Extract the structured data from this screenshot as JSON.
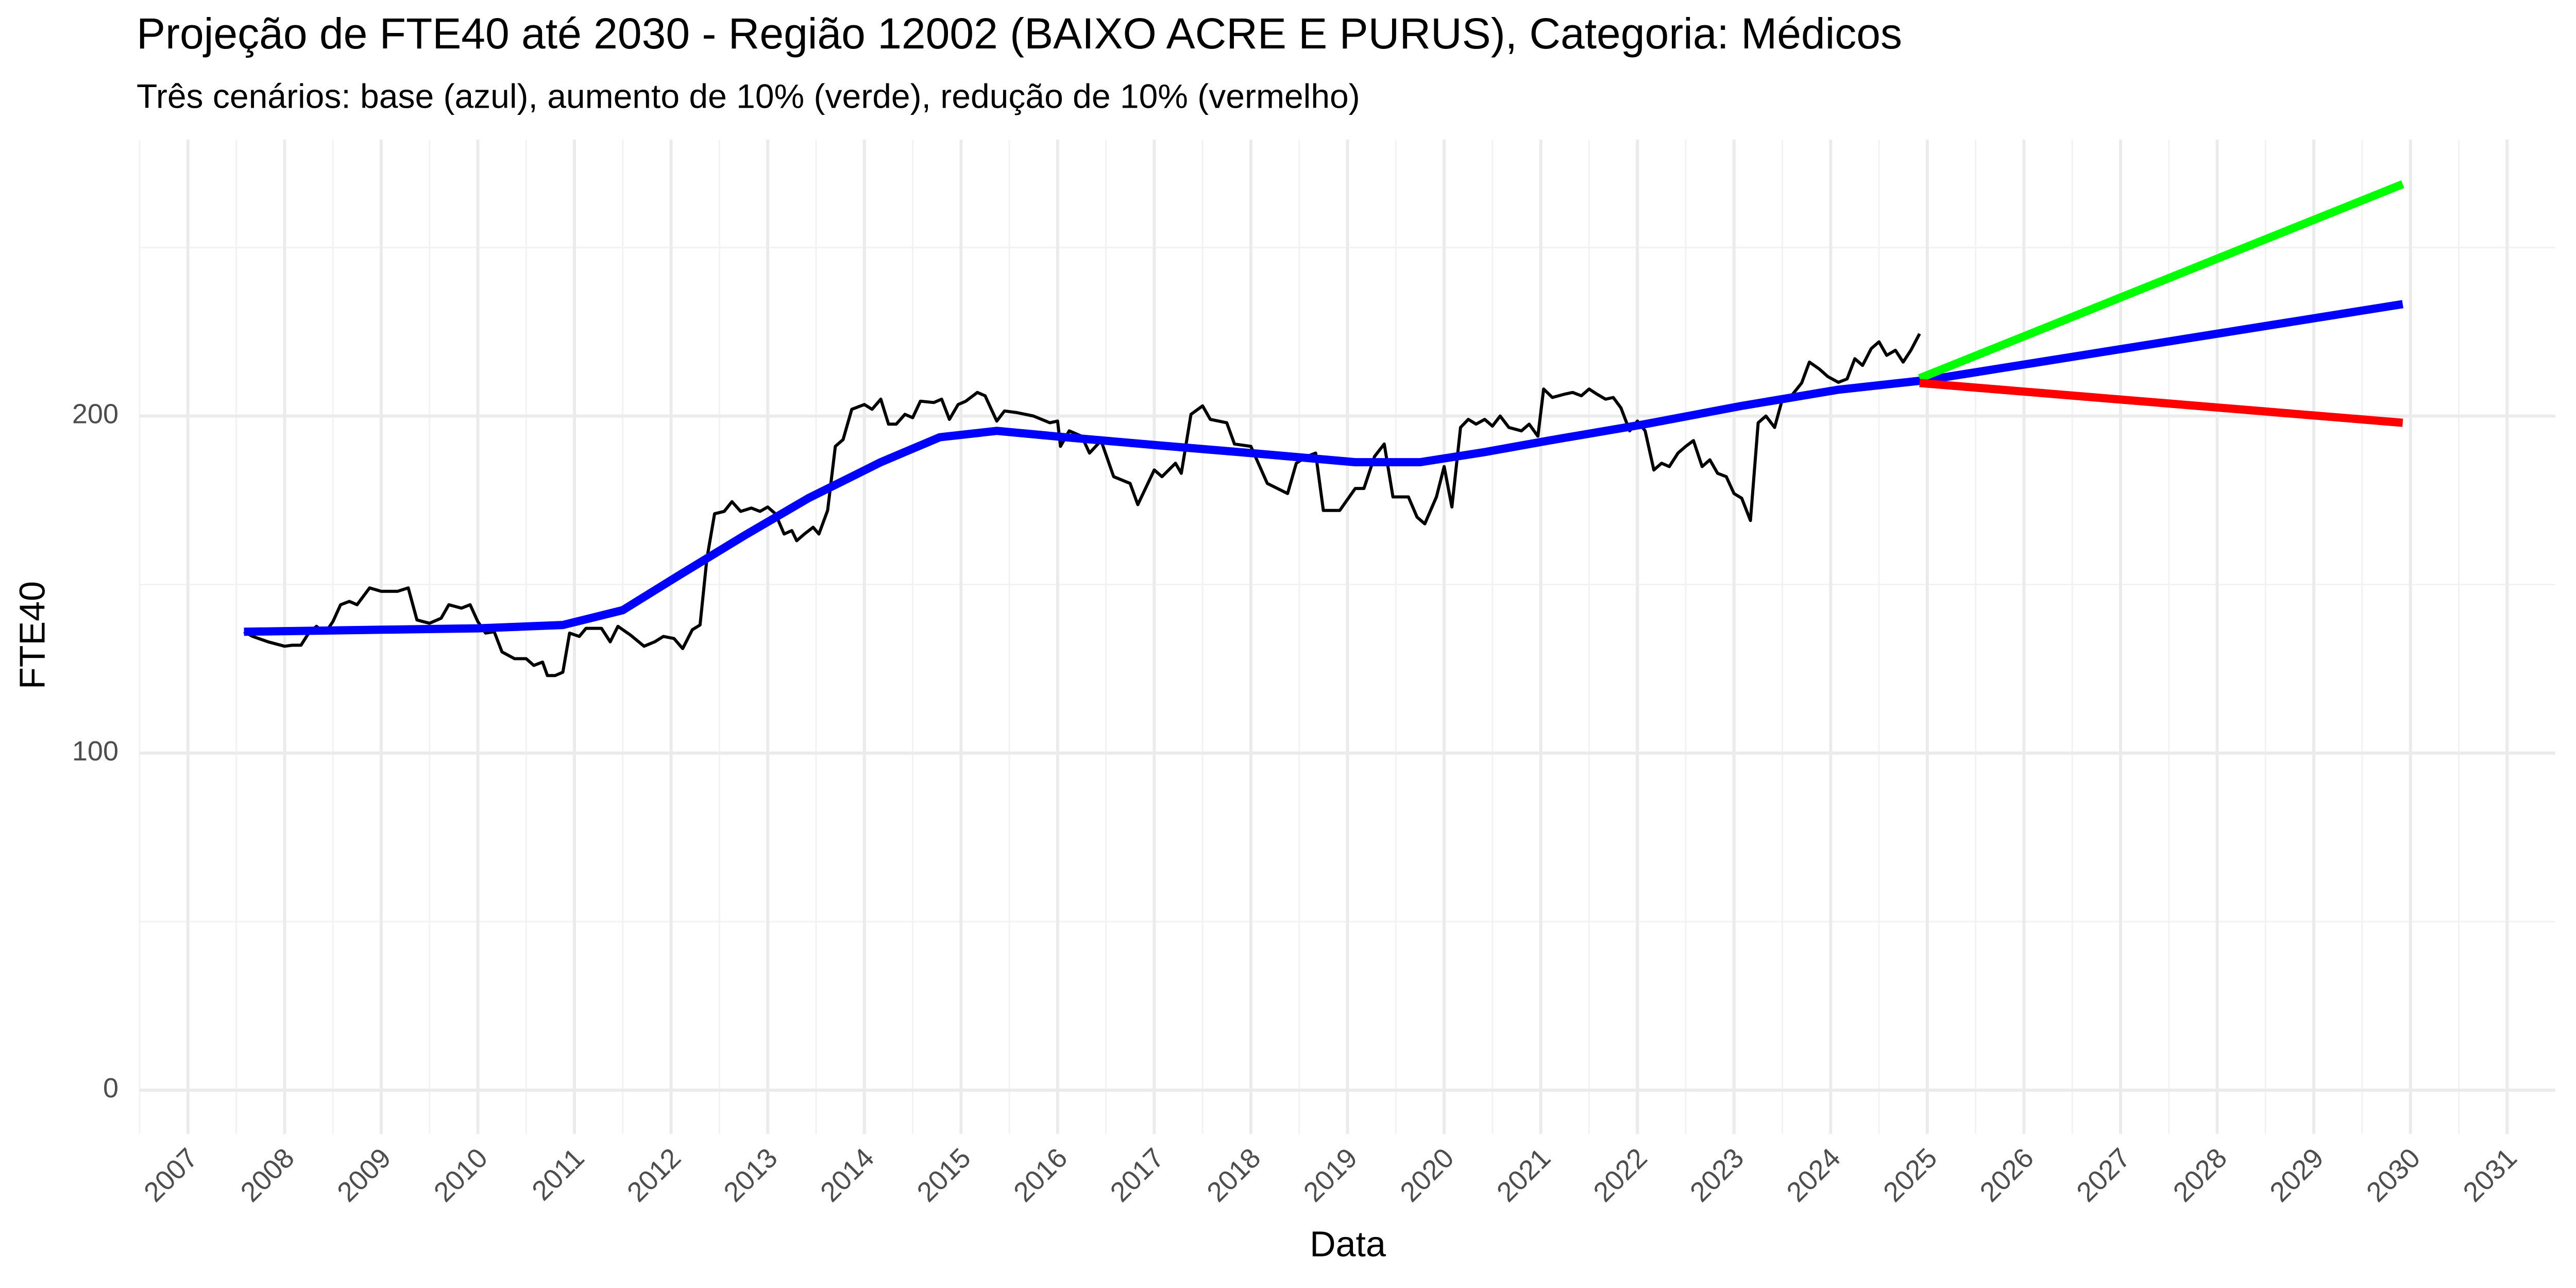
{
  "chart_data": {
    "type": "line",
    "title": "Projeção de FTE40 até 2030 - Região 12002 (BAIXO ACRE E PURUS), Categoria: Médicos",
    "subtitle": "Três cenários: base (azul), aumento de 10% (verde), redução de 10% (vermelho)",
    "x_label": "Data",
    "y_label": "FTE40",
    "xlim": [
      2006.5,
      2031.5
    ],
    "ylim": [
      -13,
      282
    ],
    "xticks": [
      2007,
      2008,
      2009,
      2010,
      2011,
      2012,
      2013,
      2014,
      2015,
      2016,
      2017,
      2018,
      2019,
      2020,
      2021,
      2022,
      2023,
      2024,
      2025,
      2026,
      2027,
      2028,
      2029,
      2030,
      2031
    ],
    "x_minor_ticks": [
      2006.5,
      2007.5,
      2008.5,
      2009.5,
      2010.5,
      2011.5,
      2012.5,
      2013.5,
      2014.5,
      2015.5,
      2016.5,
      2017.5,
      2018.5,
      2019.5,
      2020.5,
      2021.5,
      2022.5,
      2023.5,
      2024.5,
      2025.5,
      2026.5,
      2027.5,
      2028.5,
      2029.5,
      2030.5
    ],
    "yticks": [
      0,
      100,
      200
    ],
    "y_minor_ticks": [
      50,
      150,
      250
    ],
    "grid": true,
    "series": [
      {
        "color": "#000000",
        "width": 6,
        "x": [
          2007.58,
          2007.67,
          2007.83,
          2008.0,
          2008.08,
          2008.17,
          2008.25,
          2008.33,
          2008.42,
          2008.5,
          2008.58,
          2008.67,
          2008.75,
          2008.88,
          2009.0,
          2009.17,
          2009.28,
          2009.37,
          2009.5,
          2009.62,
          2009.7,
          2009.83,
          2009.92,
          2010.0,
          2010.08,
          2010.17,
          2010.25,
          2010.38,
          2010.5,
          2010.58,
          2010.67,
          2010.72,
          2010.8,
          2010.88,
          2010.95,
          2011.05,
          2011.12,
          2011.28,
          2011.37,
          2011.45,
          2011.58,
          2011.72,
          2011.83,
          2011.92,
          2012.03,
          2012.12,
          2012.22,
          2012.3,
          2012.37,
          2012.45,
          2012.55,
          2012.63,
          2012.72,
          2012.83,
          2012.92,
          2013.0,
          2013.08,
          2013.17,
          2013.25,
          2013.3,
          2013.38,
          2013.47,
          2013.53,
          2013.62,
          2013.7,
          2013.78,
          2013.87,
          2014.0,
          2014.08,
          2014.17,
          2014.25,
          2014.33,
          2014.42,
          2014.5,
          2014.58,
          2014.72,
          2014.8,
          2014.88,
          2014.97,
          2015.05,
          2015.17,
          2015.25,
          2015.37,
          2015.45,
          2015.58,
          2015.75,
          2015.92,
          2016.0,
          2016.03,
          2016.12,
          2016.25,
          2016.33,
          2016.45,
          2016.58,
          2016.75,
          2016.83,
          2017.0,
          2017.08,
          2017.22,
          2017.28,
          2017.38,
          2017.5,
          2017.58,
          2017.75,
          2017.83,
          2018.0,
          2018.17,
          2018.38,
          2018.47,
          2018.58,
          2018.67,
          2018.75,
          2018.92,
          2019.08,
          2019.17,
          2019.28,
          2019.38,
          2019.47,
          2019.63,
          2019.72,
          2019.8,
          2019.92,
          2020.0,
          2020.08,
          2020.17,
          2020.25,
          2020.33,
          2020.42,
          2020.5,
          2020.58,
          2020.67,
          2020.8,
          2020.88,
          2020.97,
          2021.03,
          2021.12,
          2021.25,
          2021.33,
          2021.42,
          2021.5,
          2021.58,
          2021.67,
          2021.75,
          2021.83,
          2021.92,
          2022.0,
          2022.08,
          2022.17,
          2022.25,
          2022.33,
          2022.42,
          2022.5,
          2022.58,
          2022.67,
          2022.75,
          2022.83,
          2022.92,
          2023.0,
          2023.08,
          2023.17,
          2023.25,
          2023.33,
          2023.42,
          2023.5,
          2023.58,
          2023.7,
          2023.78,
          2023.88,
          2023.97,
          2024.08,
          2024.17,
          2024.25,
          2024.33,
          2024.42,
          2024.5,
          2024.58,
          2024.67,
          2024.75,
          2024.83,
          2024.92
        ],
        "values": [
          136,
          134.6,
          133,
          131.7,
          132,
          132,
          135.6,
          137.6,
          135.6,
          139,
          144,
          145,
          144,
          149,
          148,
          148,
          149,
          139.5,
          138.5,
          140,
          144,
          143,
          144,
          139,
          135.6,
          136,
          130,
          128,
          128,
          126,
          127,
          123,
          123,
          124,
          135.6,
          134.6,
          137,
          137,
          133,
          137.6,
          135,
          131.7,
          133,
          134.6,
          134,
          131,
          136.6,
          138,
          157.6,
          171,
          171.7,
          174.6,
          171.7,
          172.7,
          171.7,
          173,
          171,
          165,
          166,
          163,
          165,
          167,
          165,
          172,
          191,
          193,
          202,
          203.4,
          202,
          205,
          197.6,
          197.6,
          200.5,
          199.5,
          204.4,
          204,
          205,
          199,
          203.4,
          204.4,
          207,
          206,
          198.5,
          201.5,
          201,
          200,
          198,
          198.5,
          191,
          195.6,
          194,
          189,
          192.7,
          182,
          180,
          173.7,
          184,
          182,
          186,
          183,
          200.5,
          203,
          199,
          198,
          191.7,
          191,
          180,
          177,
          186,
          188,
          189,
          172,
          172,
          178.5,
          178.5,
          188,
          191.7,
          176,
          176,
          170,
          168,
          176,
          185,
          173,
          196.6,
          199,
          197.6,
          199,
          197,
          200,
          196.6,
          195.6,
          197.6,
          194,
          208,
          205.5,
          206.5,
          207,
          206,
          208,
          206.5,
          205,
          205.5,
          202.4,
          195.6,
          198.5,
          195.6,
          184,
          186,
          185,
          189,
          191,
          192.7,
          185,
          187,
          183,
          182,
          177,
          175.6,
          169,
          198,
          200,
          196.6,
          205,
          205.5,
          209.8,
          216,
          214,
          211.7,
          210,
          211,
          217,
          215,
          220,
          222,
          218,
          219.5,
          216,
          219.5,
          224.4
        ]
      },
      {
        "color": "#0000ff",
        "width": 16,
        "x": [
          2007.58,
          2009.0,
          2010.0,
          2010.88,
          2011.5,
          2012.08,
          2012.75,
          2013.42,
          2014.17,
          2014.78,
          2015.37,
          2016.08,
          2017.08,
          2018.08,
          2019.08,
          2019.75,
          2020.42,
          2021.08,
          2022.08,
          2023.08,
          2024.08,
          2025.0,
          2029.92
        ],
        "values": [
          136,
          136.6,
          137,
          138,
          142.4,
          152.7,
          164.4,
          175.6,
          186.3,
          193.7,
          195.6,
          193.7,
          191.2,
          188.8,
          186.3,
          186.3,
          189.3,
          192.7,
          197.6,
          203,
          207.8,
          210.7,
          233.2
        ]
      },
      {
        "color": "#00ff00",
        "width": 16,
        "x": [
          2024.92,
          2029.92
        ],
        "values": [
          211.2,
          268.8
        ]
      },
      {
        "color": "#ff0000",
        "width": 16,
        "x": [
          2024.92,
          2029.92
        ],
        "values": [
          209.8,
          198
        ]
      }
    ]
  }
}
